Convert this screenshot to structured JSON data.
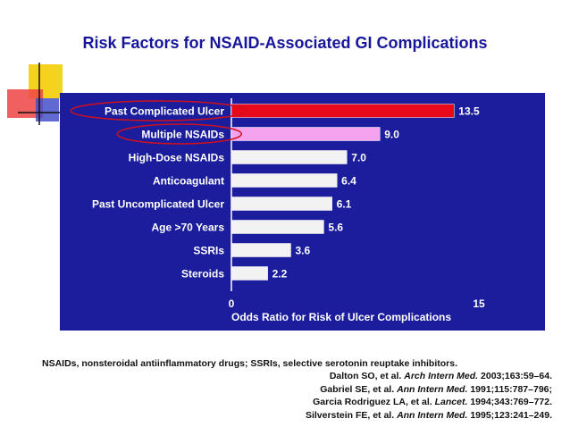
{
  "slide": {
    "title": "Risk Factors for NSAID-Associated GI Complications"
  },
  "chart_data": {
    "type": "bar",
    "orientation": "horizontal",
    "title": "",
    "xlabel": "Odds Ratio for Risk of Ulcer Complications",
    "ylabel": "",
    "xlim": [
      0,
      15
    ],
    "x_ticks": [
      "0",
      "15"
    ],
    "categories": [
      "Past Complicated Ulcer",
      "Multiple NSAIDs",
      "High-Dose NSAIDs",
      "Anticoagulant",
      "Past Uncomplicated Ulcer",
      "Age >70 Years",
      "SSRIs",
      "Steroids"
    ],
    "values": [
      13.5,
      9.0,
      7.0,
      6.4,
      6.1,
      5.6,
      3.6,
      2.2
    ],
    "value_labels": [
      "13.5",
      "9.0",
      "7.0",
      "6.4",
      "6.1",
      "5.6",
      "3.6",
      "2.2"
    ],
    "bar_colors": [
      "#e8091a",
      "#f5a3ee",
      "#f2f2f2",
      "#f2f2f2",
      "#f2f2f2",
      "#f2f2f2",
      "#f2f2f2",
      "#f2f2f2"
    ],
    "highlighted_categories": [
      "Past Complicated Ulcer",
      "Multiple NSAIDs"
    ],
    "highlight_ring_color": "#d0101c",
    "background_color": "#1b1d9c",
    "grid": false,
    "legend": "none"
  },
  "footnote": "NSAIDs, nonsteroidal antiinflammatory drugs; SSRIs, selective serotonin reuptake inhibitors.",
  "references": [
    {
      "text": "Dalton SO, et al. ",
      "journal": "Arch Intern Med.",
      "citation": " 2003;163:59–64."
    },
    {
      "text": "Gabriel SE, et al. ",
      "journal": "Ann Intern Med.",
      "citation": " 1991;115:787–796;"
    },
    {
      "text": "Garcia Rodriguez LA, et al. ",
      "journal": "Lancet.",
      "citation": " 1994;343:769–772."
    },
    {
      "text": "Silverstein FE, et al. ",
      "journal": "Ann Intern Med.",
      "citation": " 1995;123:241–249."
    }
  ]
}
